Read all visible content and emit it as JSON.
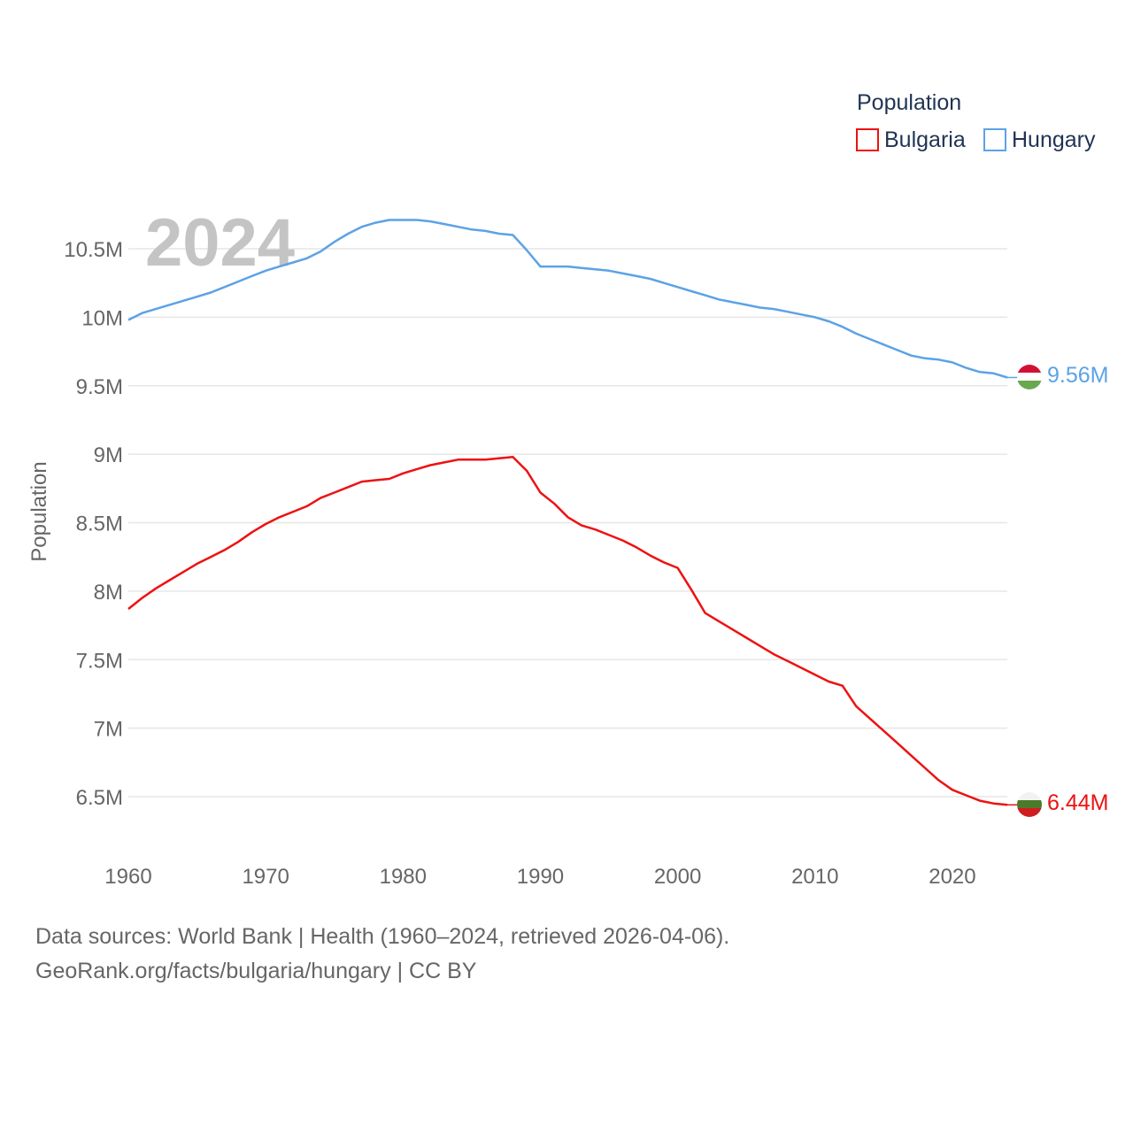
{
  "chart_data": {
    "type": "line",
    "title": "",
    "year_label": "2024",
    "ylabel": "Population",
    "xlabel": "",
    "legend_title": "Population",
    "legend_position": "top-right",
    "xlim": [
      1960,
      2024
    ],
    "ylim": [
      6.2,
      10.95
    ],
    "x_ticks": [
      1960,
      1970,
      1980,
      1990,
      2000,
      2010,
      2020
    ],
    "x_tick_labels": [
      "1960",
      "1970",
      "1980",
      "1990",
      "2000",
      "2010",
      "2020"
    ],
    "y_ticks": [
      6.5,
      7,
      7.5,
      8,
      8.5,
      9,
      9.5,
      10,
      10.5
    ],
    "y_tick_labels": [
      "6.5M",
      "7M",
      "7.5M",
      "8M",
      "8.5M",
      "9M",
      "9.5M",
      "10M",
      "10.5M"
    ],
    "grid": true,
    "x": [
      1960,
      1961,
      1962,
      1963,
      1964,
      1965,
      1966,
      1967,
      1968,
      1969,
      1970,
      1971,
      1972,
      1973,
      1974,
      1975,
      1976,
      1977,
      1978,
      1979,
      1980,
      1981,
      1982,
      1983,
      1984,
      1985,
      1986,
      1987,
      1988,
      1989,
      1990,
      1991,
      1992,
      1993,
      1994,
      1995,
      1996,
      1997,
      1998,
      1999,
      2000,
      2001,
      2002,
      2003,
      2004,
      2005,
      2006,
      2007,
      2008,
      2009,
      2010,
      2011,
      2012,
      2013,
      2014,
      2015,
      2016,
      2017,
      2018,
      2019,
      2020,
      2021,
      2022,
      2023,
      2024
    ],
    "series": [
      {
        "name": "Bulgaria",
        "color": "#ee1111",
        "end_label": "6.44M",
        "flag": "bulgaria-flag",
        "values": [
          7.87,
          7.95,
          8.02,
          8.08,
          8.14,
          8.2,
          8.25,
          8.3,
          8.36,
          8.43,
          8.49,
          8.54,
          8.58,
          8.62,
          8.68,
          8.72,
          8.76,
          8.8,
          8.81,
          8.82,
          8.86,
          8.89,
          8.92,
          8.94,
          8.96,
          8.96,
          8.96,
          8.97,
          8.98,
          8.88,
          8.72,
          8.64,
          8.54,
          8.48,
          8.45,
          8.41,
          8.37,
          8.32,
          8.26,
          8.21,
          8.17,
          8.01,
          7.84,
          7.78,
          7.72,
          7.66,
          7.6,
          7.54,
          7.49,
          7.44,
          7.39,
          7.34,
          7.31,
          7.16,
          7.07,
          6.98,
          6.89,
          6.8,
          6.71,
          6.62,
          6.55,
          6.51,
          6.47,
          6.45,
          6.44
        ]
      },
      {
        "name": "Hungary",
        "color": "#5ca2e6",
        "end_label": "9.56M",
        "flag": "hungary-flag",
        "values": [
          9.98,
          10.03,
          10.06,
          10.09,
          10.12,
          10.15,
          10.18,
          10.22,
          10.26,
          10.3,
          10.34,
          10.37,
          10.4,
          10.43,
          10.48,
          10.55,
          10.61,
          10.66,
          10.69,
          10.71,
          10.71,
          10.71,
          10.7,
          10.68,
          10.66,
          10.64,
          10.63,
          10.61,
          10.6,
          10.49,
          10.37,
          10.37,
          10.37,
          10.36,
          10.35,
          10.34,
          10.32,
          10.3,
          10.28,
          10.25,
          10.22,
          10.19,
          10.16,
          10.13,
          10.11,
          10.09,
          10.07,
          10.06,
          10.04,
          10.02,
          10.0,
          9.97,
          9.93,
          9.88,
          9.84,
          9.8,
          9.76,
          9.72,
          9.7,
          9.69,
          9.67,
          9.63,
          9.6,
          9.59,
          9.56
        ]
      }
    ]
  },
  "footer": {
    "line1": "Data sources: World Bank | Health (1960–2024, retrieved 2026-04-06).",
    "line2": "GeoRank.org/facts/bulgaria/hungary | CC BY"
  }
}
